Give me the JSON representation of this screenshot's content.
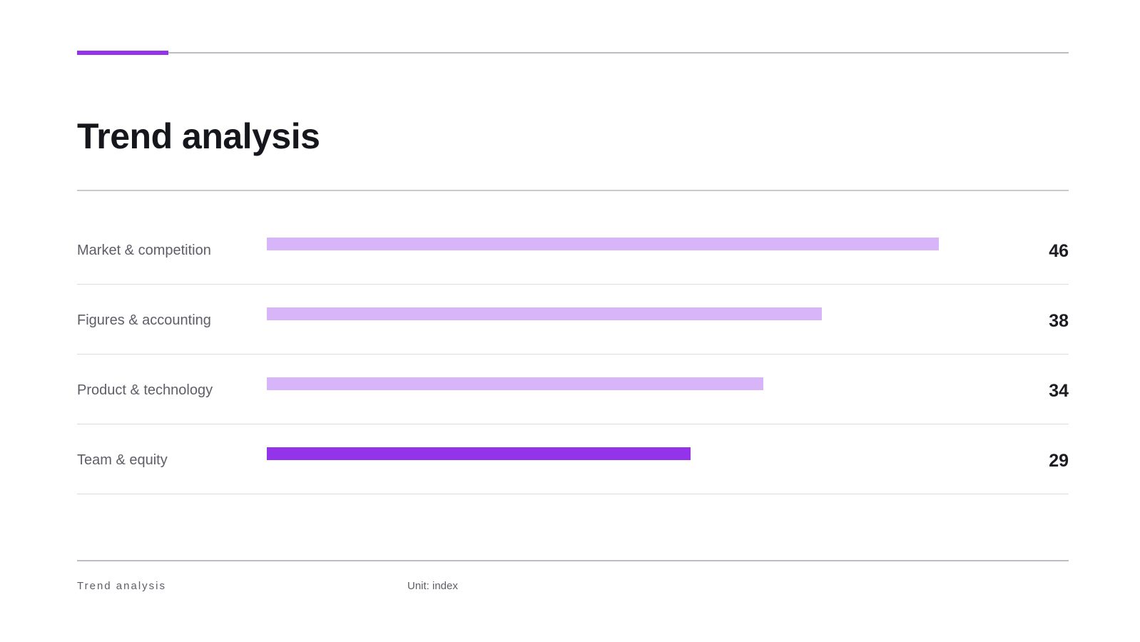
{
  "page": {
    "title": "Trend analysis"
  },
  "colors": {
    "accent": "#9333ea",
    "bar_default": "#d8b4f8",
    "bar_highlight": "#9333ea"
  },
  "chart_data": {
    "type": "bar",
    "orientation": "horizontal",
    "categories": [
      "Market & competition",
      "Figures & accounting",
      "Product & technology",
      "Team & equity"
    ],
    "values": [
      46,
      38,
      34,
      29
    ],
    "value_labels": [
      "46",
      "38",
      "34",
      "29"
    ],
    "highlighted_index": 3,
    "xlim": [
      0,
      53
    ],
    "grid": false,
    "legend": "none"
  },
  "footer": {
    "title": "Trend analysis",
    "unit": "Unit: index"
  }
}
